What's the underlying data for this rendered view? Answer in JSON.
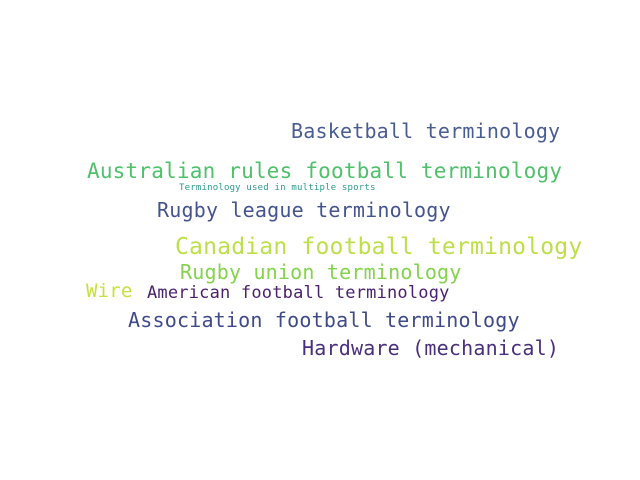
{
  "words": [
    {
      "id": "basketball",
      "text": "Basketball terminology",
      "color": "#4a5d92"
    },
    {
      "id": "australian",
      "text": "Australian rules football terminology",
      "color": "#4fc16a"
    },
    {
      "id": "multi",
      "text": "Terminology used in multiple sports",
      "color": "#2a9a8e"
    },
    {
      "id": "rleague",
      "text": "Rugby league terminology",
      "color": "#45548f"
    },
    {
      "id": "canadian",
      "text": "Canadian football terminology",
      "color": "#bde04a"
    },
    {
      "id": "runion",
      "text": "Rugby union terminology",
      "color": "#84d34c"
    },
    {
      "id": "wire",
      "text": "Wire",
      "color": "#c8e03f"
    },
    {
      "id": "american",
      "text": "American football terminology",
      "color": "#4b1f6f"
    },
    {
      "id": "association",
      "text": "Association football terminology",
      "color": "#3f4a8a"
    },
    {
      "id": "hardware",
      "text": "Hardware (mechanical)",
      "color": "#4a2f7c"
    }
  ]
}
